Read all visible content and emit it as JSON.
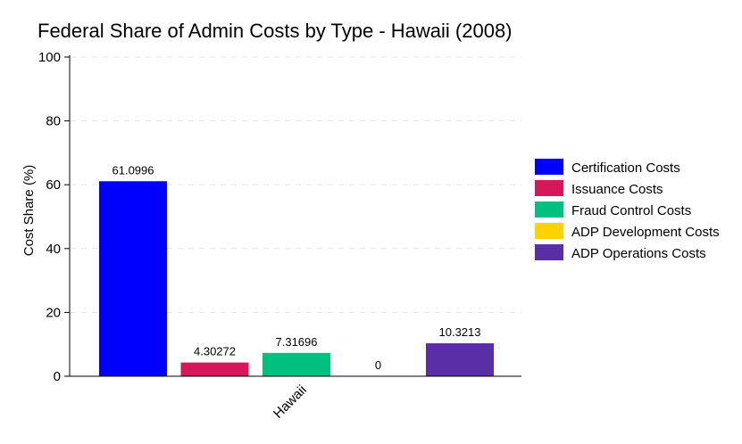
{
  "chart_data": {
    "type": "bar",
    "title": "Federal Share of Admin Costs by Type - Hawaii (2008)",
    "xlabel": "",
    "ylabel": "Cost Share (%)",
    "categories": [
      "Hawaii"
    ],
    "ylim": [
      0,
      100
    ],
    "yticks": [
      0,
      20,
      40,
      60,
      80,
      100
    ],
    "grid": true,
    "legend_position": "right",
    "series": [
      {
        "name": "Certification Costs",
        "values": [
          61.0996
        ],
        "label": "61.0996",
        "color": "#0000ff"
      },
      {
        "name": "Issuance Costs",
        "values": [
          4.30272
        ],
        "label": "4.30272",
        "color": "#d6185a"
      },
      {
        "name": "Fraud Control Costs",
        "values": [
          7.31696
        ],
        "label": "7.31696",
        "color": "#00c07f"
      },
      {
        "name": "ADP Development Costs",
        "values": [
          0
        ],
        "label": "0",
        "color": "#ffd200"
      },
      {
        "name": "ADP Operations Costs",
        "values": [
          10.3213
        ],
        "label": "10.3213",
        "color": "#5a2ea6"
      }
    ]
  }
}
